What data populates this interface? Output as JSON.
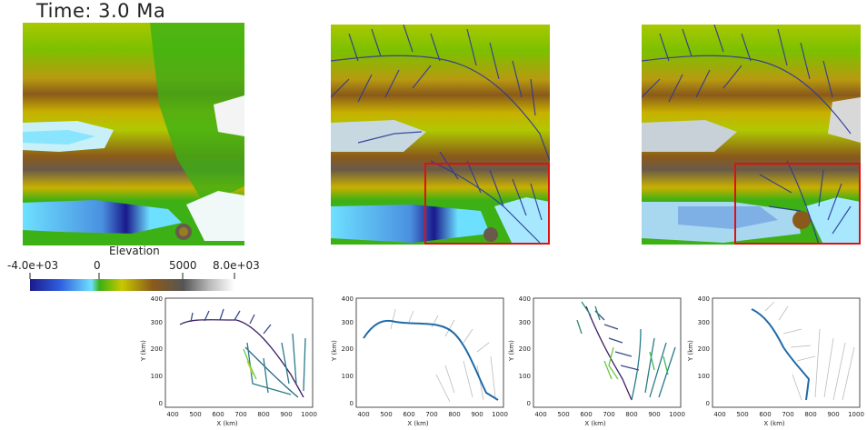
{
  "header": {
    "time_label": "Time: 3.0 Ma"
  },
  "colorbar": {
    "title": "Elevation",
    "ticks": [
      "-4.0e+03",
      "0",
      "5000",
      "8.0e+03"
    ],
    "min": -4000,
    "max": 8000
  },
  "colors": {
    "sea_deep": "#1a1a8c",
    "sea_shallow": "#6ee0ff",
    "lowland": "#3cb014",
    "midland": "#c8c800",
    "highland": "#8a5a1a",
    "peak": "#555555",
    "snow": "#f4f4f4",
    "river": "#2a3a9a",
    "box": "#e01010"
  },
  "plots": [
    {
      "xlabel": "X (km)",
      "ylabel": "Y (km)",
      "xticks": [
        "400",
        "500",
        "600",
        "700",
        "800",
        "900",
        "1000"
      ],
      "yticks": [
        "0",
        "100",
        "200",
        "300",
        "400"
      ]
    },
    {
      "xlabel": "X (km)",
      "ylabel": "Y (km)",
      "xticks": [
        "400",
        "500",
        "600",
        "700",
        "800",
        "900",
        "1000"
      ],
      "yticks": [
        "0",
        "100",
        "200",
        "300",
        "400"
      ]
    },
    {
      "xlabel": "X (km)",
      "ylabel": "Y (km)",
      "xticks": [
        "400",
        "500",
        "600",
        "700",
        "800",
        "900",
        "1000"
      ],
      "yticks": [
        "0",
        "100",
        "200",
        "300",
        "400"
      ]
    },
    {
      "xlabel": "X (km)",
      "ylabel": "Y (km)",
      "xticks": [
        "400",
        "500",
        "600",
        "700",
        "800",
        "900",
        "1000"
      ],
      "yticks": [
        "0",
        "100",
        "200",
        "300",
        "400"
      ]
    }
  ]
}
